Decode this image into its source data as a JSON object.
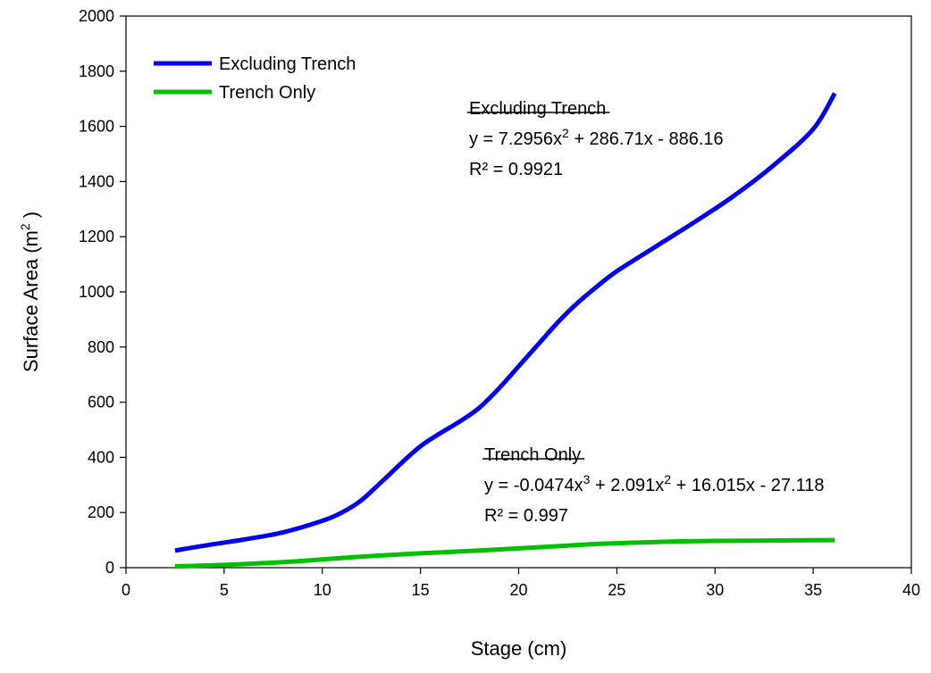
{
  "chart_data": {
    "type": "line",
    "xlabel": "Stage (cm)",
    "ylabel": {
      "main": "Surface Area (m",
      "sup": "2",
      "tail": " )"
    },
    "xlim": [
      0,
      40
    ],
    "ylim": [
      0,
      2000
    ],
    "xticks": [
      0,
      5,
      10,
      15,
      20,
      25,
      30,
      35,
      40
    ],
    "yticks": [
      0,
      200,
      400,
      600,
      800,
      1000,
      1200,
      1400,
      1600,
      1800,
      2000
    ],
    "grid": false,
    "legend_position": "top-left",
    "series": [
      {
        "name": "Excluding Trench",
        "color": "#0000ee",
        "x": [
          2.5,
          4,
          6,
          8,
          10,
          11,
          12,
          13,
          15,
          17,
          18,
          19,
          20,
          21,
          22,
          23,
          24,
          25,
          27,
          29,
          31,
          33,
          35,
          36.1
        ],
        "y": [
          62,
          80,
          102,
          128,
          170,
          200,
          245,
          310,
          440,
          530,
          580,
          650,
          730,
          810,
          890,
          960,
          1020,
          1075,
          1165,
          1255,
          1350,
          1460,
          1590,
          1720
        ]
      },
      {
        "name": "Trench Only",
        "color": "#00c000",
        "x": [
          2.5,
          5,
          8,
          10,
          12,
          15,
          18,
          20,
          22,
          24,
          26,
          28,
          30,
          32,
          34,
          36.1
        ],
        "y": [
          5,
          10,
          20,
          30,
          40,
          52,
          62,
          70,
          78,
          86,
          91,
          95,
          97,
          98,
          99,
          100
        ]
      }
    ],
    "annotations": [
      {
        "title": "Excluding Trench",
        "equation": [
          {
            "text": "y = 7.2956x"
          },
          {
            "text": "2",
            "sup": true
          },
          {
            "text": " + 286.71x - 886.16"
          }
        ],
        "r2": "R² = 0.9921"
      },
      {
        "title": "Trench Only",
        "equation": [
          {
            "text": "y = -0.0474x"
          },
          {
            "text": "3",
            "sup": true
          },
          {
            "text": " + 2.091x"
          },
          {
            "text": "2",
            "sup": true
          },
          {
            "text": " + 16.015x - 27.118"
          }
        ],
        "r2": "R² = 0.997"
      }
    ]
  }
}
